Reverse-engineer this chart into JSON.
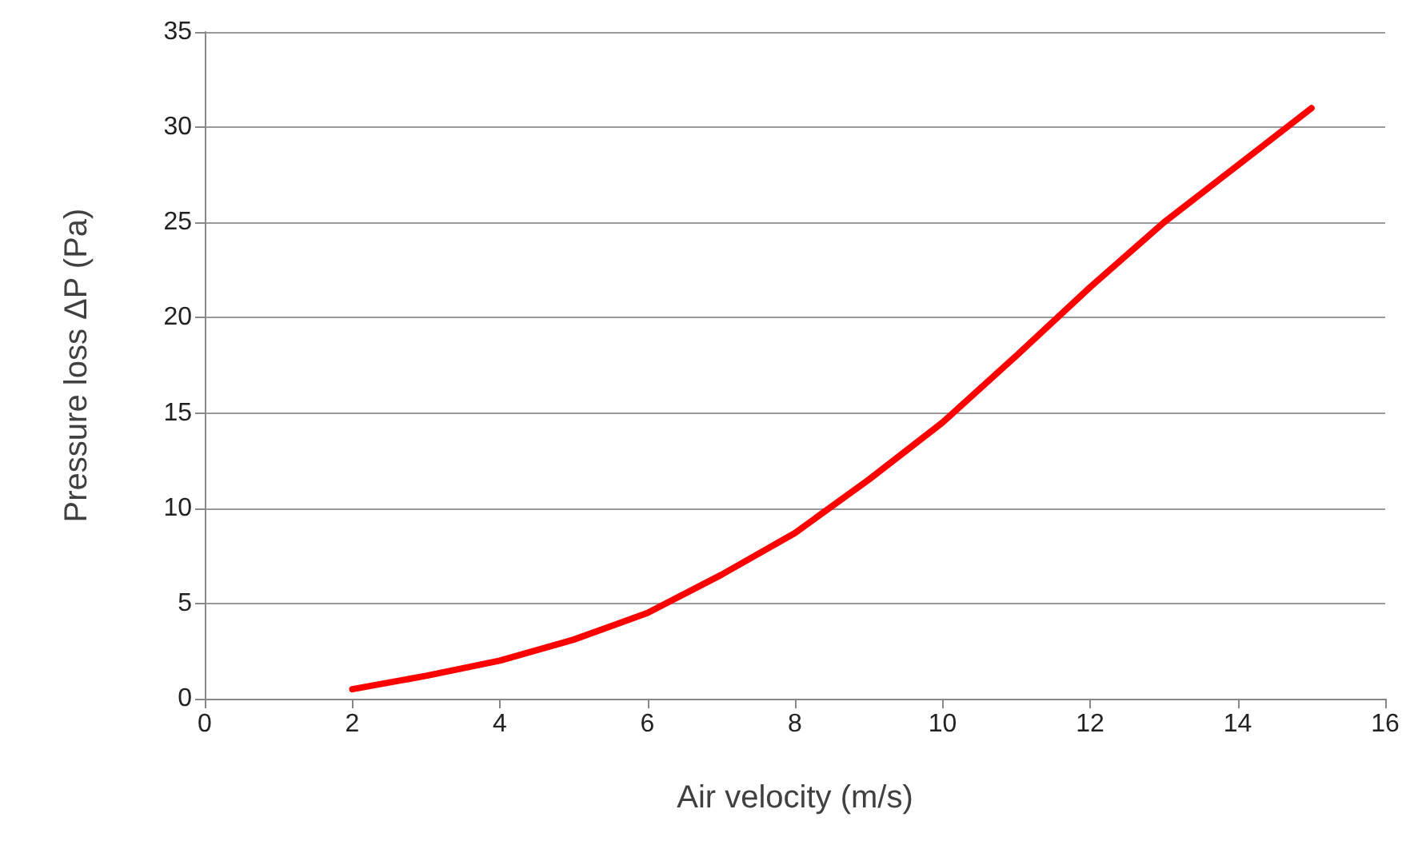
{
  "chart_data": {
    "type": "line",
    "xlabel": "Air velocity (m/s)",
    "ylabel": "Pressure loss ΔP (Pa)",
    "x": [
      2,
      3,
      4,
      5,
      6,
      7,
      8,
      9,
      10,
      11,
      12,
      13,
      14,
      15
    ],
    "series": [
      {
        "color": "#ff0000",
        "values": [
          0.5,
          1.2,
          2.0,
          3.1,
          4.5,
          6.5,
          8.7,
          11.5,
          14.5,
          18,
          21.6,
          25,
          28,
          31
        ]
      }
    ],
    "xlim": [
      0,
      16
    ],
    "xticks": [
      0,
      2,
      4,
      6,
      8,
      10,
      12,
      14,
      16
    ],
    "ylim": [
      0,
      35
    ],
    "yticks": [
      0,
      5,
      10,
      15,
      20,
      25,
      30,
      35
    ],
    "grid": "y",
    "marker": "none",
    "line_style": "solid"
  }
}
